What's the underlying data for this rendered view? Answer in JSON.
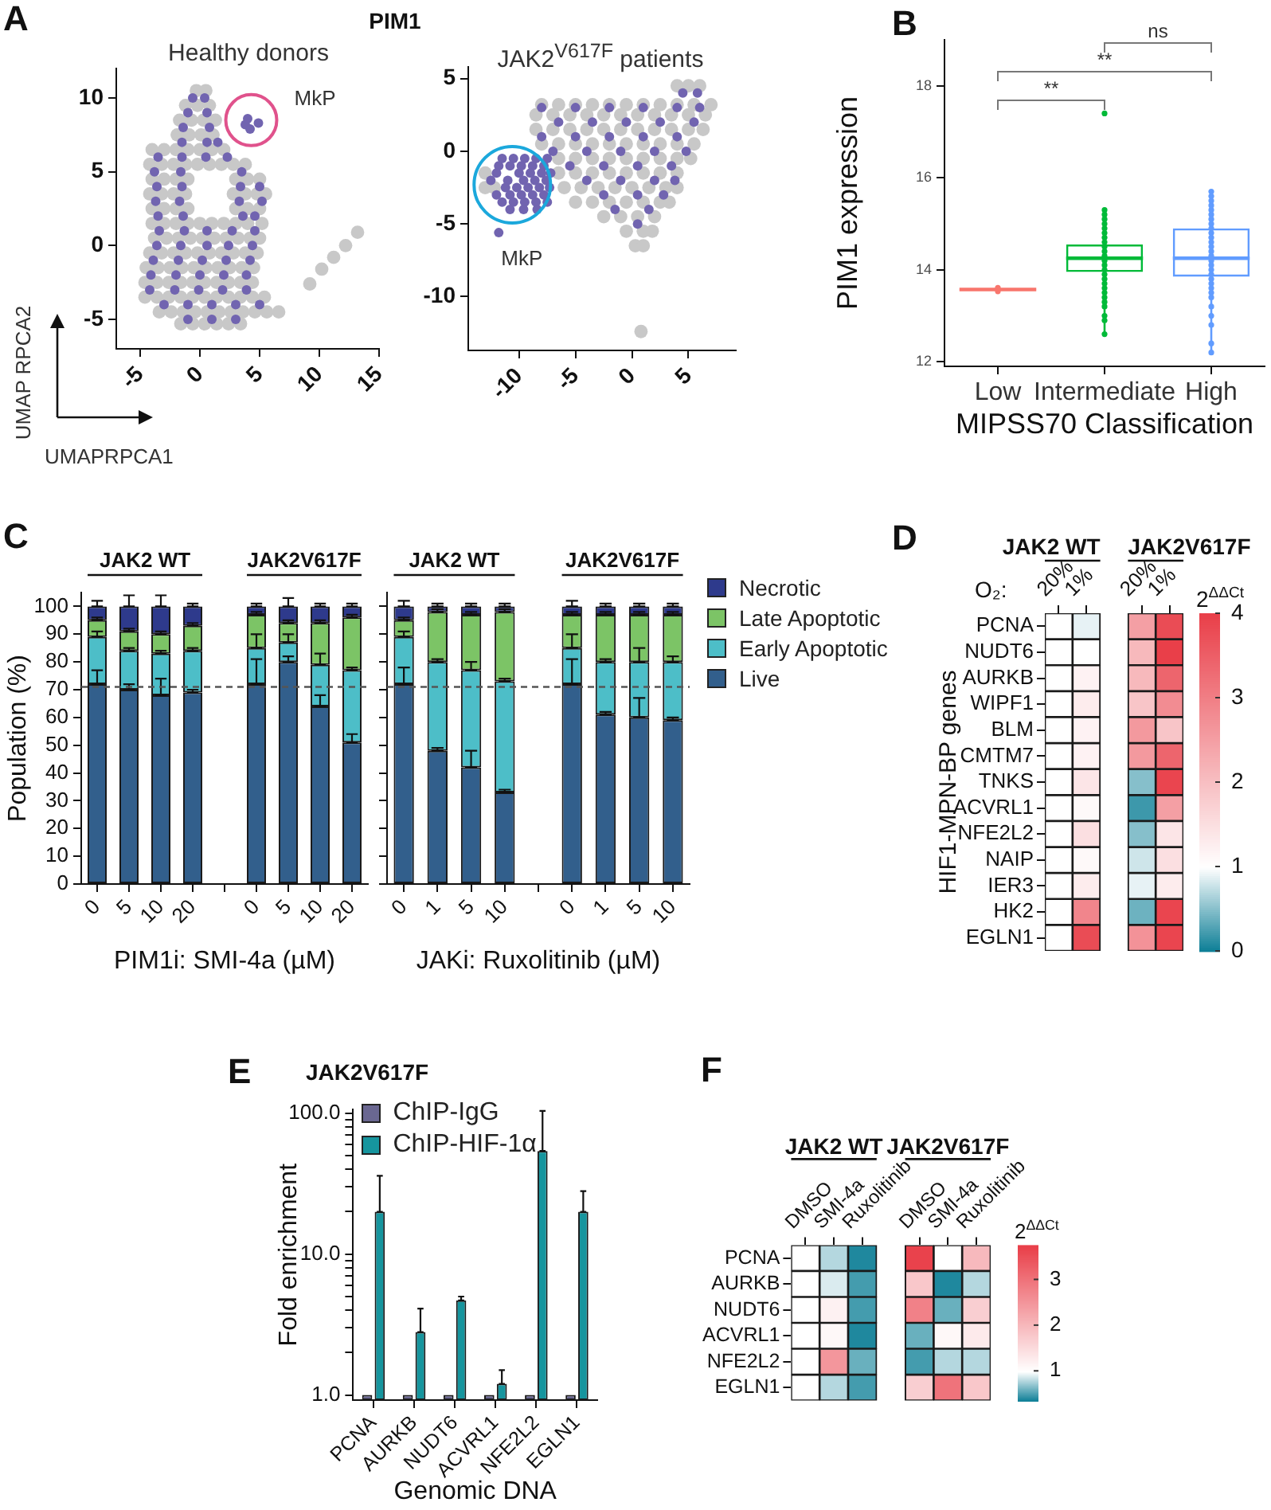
{
  "chart_data": [
    {
      "type": "scatter",
      "title": "PIM1",
      "subtitle": "Healthy donors",
      "xlabel": "UMAPRPCA1",
      "ylabel": "UMAP RPCA2",
      "xlim": [
        -7,
        15
      ],
      "xticks": [
        -5,
        0,
        5,
        10,
        15
      ],
      "ylim": [
        -7,
        12
      ],
      "yticks": [
        -5,
        0,
        5,
        10
      ],
      "marker": "circle",
      "annotations": [
        "A",
        {
          "text": "MkP",
          "x": 4.3,
          "y": 8.5
        }
      ],
      "series": [
        {
          "color": "#c8c8c8",
          "x": [
            -0.3,
            0.5,
            -1.2,
            -0.2,
            0.8,
            -1.7,
            -0.7,
            0.3,
            1.3,
            -1.9,
            -0.9,
            0.1,
            1.1,
            -4,
            -3,
            -2,
            -1,
            0,
            1,
            2,
            -4.2,
            -3.2,
            -2.2,
            -1.2,
            -0.2,
            0.8,
            1.8,
            2.8,
            3.8,
            -4,
            -3,
            -2,
            -1,
            3,
            4,
            5,
            -4.2,
            -3.2,
            -2.2,
            -1.2,
            2.8,
            3.8,
            4.8,
            5.5,
            -4,
            -3,
            -2,
            -1,
            3,
            4,
            5,
            -4,
            -3,
            -2,
            -1,
            0,
            1,
            2,
            3,
            4,
            5.2,
            -3.8,
            -2.8,
            -1.8,
            -0.8,
            0.2,
            1.2,
            2.2,
            3.2,
            4.2,
            5,
            -4.2,
            -3.2,
            -2.2,
            -1.2,
            -0.2,
            0.8,
            1.8,
            2.8,
            3.8,
            4.8,
            -4.5,
            -3.5,
            -2.5,
            -1.5,
            -0.5,
            0.5,
            1.5,
            2.5,
            3.5,
            4.5,
            -4.6,
            -3.6,
            -2.6,
            -1.6,
            -0.6,
            0.4,
            1.4,
            2.4,
            3.4,
            4.4,
            -4.6,
            -3.6,
            -2.6,
            -1.6,
            -0.6,
            0.4,
            1.4,
            2.4,
            3.4,
            4.4,
            5.4,
            -3.4,
            -2.4,
            -1.4,
            -0.4,
            0.6,
            1.6,
            2.6,
            3.6,
            4.6,
            5.6,
            6.6,
            -1.6,
            -0.6,
            0.4,
            1.4,
            2.4,
            3.4,
            9.2,
            10.2,
            11.2,
            12.2,
            13.2
          ],
          "values": [
            10.5,
            10.5,
            9.5,
            9.5,
            9.5,
            8.5,
            8.5,
            8.5,
            8.5,
            7.5,
            7.5,
            7.5,
            7.5,
            6.5,
            6.5,
            6.5,
            6.5,
            6.5,
            6.5,
            6.5,
            5.5,
            5.5,
            5.5,
            5.5,
            5.5,
            5.5,
            5.5,
            5.5,
            5.5,
            4.5,
            4.5,
            4.5,
            4.5,
            4.5,
            4.5,
            4.5,
            3.5,
            3.5,
            3.5,
            3.5,
            3.5,
            3.5,
            3.5,
            3.5,
            2.5,
            2.5,
            2.5,
            2.5,
            2.5,
            2.5,
            2.5,
            1.5,
            1.5,
            1.5,
            1.5,
            1.5,
            1.5,
            1.5,
            1.5,
            1.5,
            1.5,
            0.5,
            0.5,
            0.5,
            0.5,
            0.5,
            0.5,
            0.5,
            0.5,
            0.5,
            0.5,
            -0.5,
            -0.5,
            -0.5,
            -0.5,
            -0.5,
            -0.5,
            -0.5,
            -0.5,
            -0.5,
            -0.5,
            -1.5,
            -1.5,
            -1.5,
            -1.5,
            -1.5,
            -1.5,
            -1.5,
            -1.5,
            -1.5,
            -1.5,
            -2.5,
            -2.5,
            -2.5,
            -2.5,
            -2.5,
            -2.5,
            -2.5,
            -2.5,
            -2.5,
            -2.5,
            -3.5,
            -3.5,
            -3.5,
            -3.5,
            -3.5,
            -3.5,
            -3.5,
            -3.5,
            -3.5,
            -3.5,
            -3.5,
            -4.5,
            -4.5,
            -4.5,
            -4.5,
            -4.5,
            -4.5,
            -4.5,
            -4.5,
            -4.5,
            -4.5,
            -4.5,
            -5.3,
            -5.3,
            -5.3,
            -5.3,
            -5.3,
            -5.3,
            -2.6,
            -1.6,
            -0.8,
            0,
            0.9
          ]
        },
        {
          "color": "#7164b0",
          "x": [
            -0.6,
            0.4,
            -1,
            0.6,
            -1.4,
            0.8,
            -1.5,
            0.6,
            1.5,
            -3.5,
            -1.5,
            0.5,
            2.3,
            -3.8,
            -1.6,
            3.5,
            -3.6,
            -1.5,
            3.4,
            5,
            -3.7,
            -1.7,
            3.3,
            5.2,
            -3.5,
            -1.4,
            3.6,
            4.6,
            -3.4,
            -1.3,
            0.6,
            2.7,
            4.6,
            -3.6,
            -1.6,
            0.6,
            2.4,
            4.4,
            -3.9,
            -1.8,
            0.2,
            2.2,
            4.2,
            -4.1,
            -2,
            0,
            2,
            3.9,
            -4.2,
            -2.1,
            -0.1,
            1.9,
            3.9,
            -3,
            -1,
            1,
            3,
            5,
            -1,
            1,
            3,
            3.8,
            4.2,
            4.9,
            4
          ],
          "values": [
            10,
            10,
            9,
            9,
            8,
            8,
            7,
            7,
            7,
            6,
            6,
            6,
            6,
            5,
            5,
            5,
            4,
            4,
            4,
            4,
            3,
            3,
            3,
            3,
            2,
            2,
            2,
            2,
            1,
            1,
            1,
            1,
            1,
            0,
            0,
            0,
            0,
            0,
            -1,
            -1,
            -1,
            -1,
            -1,
            -2,
            -2,
            -2,
            -2,
            -2,
            -3,
            -3,
            -3,
            -3,
            -3,
            -4,
            -4,
            -4,
            -4,
            -4,
            -5,
            -5,
            -5,
            8.2,
            7.9,
            8.3,
            8.6
          ]
        }
      ]
    },
    {
      "type": "scatter",
      "subtitle": "JAK2$^{V617F}$ patients",
      "xlim": [
        -14.5,
        9.2
      ],
      "xticks": [
        -10,
        -5,
        0,
        5
      ],
      "ylim": [
        -13.7,
        5.8
      ],
      "yticks": [
        -10,
        -5,
        0,
        5
      ],
      "marker": "circle",
      "annotations": [
        {
          "text": "MkP",
          "x": -10.6,
          "y": -2.3
        }
      ],
      "series": [
        {
          "color": "#c8c8c8",
          "x": [
            4,
            5,
            6,
            -8,
            -6.5,
            -5,
            -3.5,
            -2,
            -0.5,
            1,
            2.5,
            4,
            5.5,
            7,
            -8.5,
            -7,
            -5.5,
            -4,
            -2.5,
            -1,
            0.5,
            2,
            3.5,
            5,
            6.5,
            -8.5,
            -7,
            -5.5,
            -4,
            -2.5,
            -1,
            0.5,
            2,
            3.5,
            5,
            6.3,
            -8,
            -6.5,
            -5,
            -3.5,
            -2,
            -0.5,
            1,
            2.5,
            4,
            5.5,
            -6.5,
            -5,
            -3.5,
            -2,
            -0.5,
            1,
            2.5,
            4,
            5.2,
            -13,
            -6.5,
            -5,
            -3.5,
            -2,
            -0.5,
            1,
            2.5,
            4,
            -13,
            -12.2,
            -6,
            -4.5,
            -3,
            -1.5,
            0,
            1.5,
            3,
            4,
            -5,
            -3.5,
            -2,
            -0.5,
            1,
            2.5,
            3.3,
            -2.5,
            -1,
            0.5,
            2,
            -0.5,
            1,
            1.8,
            0.3,
            1,
            0.8
          ],
          "values": [
            4.5,
            4.5,
            4.5,
            3.2,
            3.2,
            3.2,
            3.2,
            3.2,
            3.2,
            3.2,
            3.2,
            3.2,
            3.2,
            3.2,
            2.5,
            2.5,
            2.5,
            2.5,
            2.5,
            2.5,
            2.5,
            2.5,
            2.5,
            2.5,
            2.5,
            1.5,
            1.5,
            1.5,
            1.5,
            1.5,
            1.5,
            1.5,
            1.5,
            1.5,
            1.5,
            1.5,
            0.5,
            0.5,
            0.5,
            0.5,
            0.5,
            0.5,
            0.5,
            0.5,
            0.5,
            0.5,
            -0.5,
            -0.5,
            -0.5,
            -0.5,
            -0.5,
            -0.5,
            -0.5,
            -0.5,
            -0.5,
            -1.5,
            -1.5,
            -1.5,
            -1.5,
            -1.5,
            -1.5,
            -1.5,
            -1.5,
            -1.5,
            -2.5,
            -2.5,
            -2.5,
            -2.5,
            -2.5,
            -2.5,
            -2.5,
            -2.5,
            -2.5,
            -2.5,
            -3.5,
            -3.5,
            -3.5,
            -3.5,
            -3.5,
            -3.5,
            -3.5,
            -4.5,
            -4.5,
            -4.5,
            -4.5,
            -5.5,
            -5.5,
            -5.5,
            -6.5,
            -6.5,
            -12.4
          ]
        },
        {
          "color": "#7164b0",
          "x": [
            -8,
            -5,
            -2,
            1,
            4,
            6,
            -6.5,
            -3.5,
            -0.5,
            2.5,
            5.5,
            -8,
            -5,
            -2,
            1,
            4,
            -7,
            -4,
            -1,
            2,
            4.8,
            -5.5,
            -2.5,
            0.5,
            3.5,
            -4,
            -1,
            2,
            3.8,
            -2.5,
            0.5,
            2.8,
            -1.5,
            1.5,
            0.5,
            4.5,
            5.8,
            -11.5,
            -10.5,
            -9.5,
            -8.5,
            -7.5,
            -11.8,
            -10.8,
            -9.8,
            -8.8,
            -7.8,
            -12,
            -10,
            -9,
            -8,
            -7.2,
            -12.5,
            -11,
            -9.6,
            -8.6,
            -7.6,
            -11.2,
            -10.2,
            -9.2,
            -8.2,
            -7.3,
            -12,
            -10.8,
            -9.8,
            -8.8,
            -7.8,
            -11.5,
            -10.5,
            -9.5,
            -8.5,
            -7.5,
            -10.8,
            -9.6,
            -8.4,
            -11.8
          ],
          "values": [
            3,
            3,
            3,
            3,
            3,
            3,
            2,
            2,
            2,
            2,
            2,
            1,
            1,
            1,
            1,
            1,
            0,
            0,
            0,
            0,
            0,
            -1,
            -1,
            -1,
            -1,
            -2,
            -2,
            -2,
            -2,
            -3,
            -3,
            -3,
            -4,
            -4,
            -5,
            4,
            4,
            -0.5,
            -0.5,
            -0.5,
            -0.5,
            -0.5,
            -1,
            -1,
            -1,
            -1,
            -1,
            -1.5,
            -1.5,
            -1.5,
            -1.5,
            -1.5,
            -2,
            -2,
            -2,
            -2,
            -2,
            -2.5,
            -2.5,
            -2.5,
            -2.5,
            -2.5,
            -3,
            -3,
            -3,
            -3,
            -3,
            -3.5,
            -3.5,
            -3.5,
            -3.5,
            -3.5,
            -4,
            -4,
            -4,
            -5.6
          ]
        }
      ]
    },
    {
      "type": "box",
      "categories": [
        "Low",
        "Intermediate",
        "High"
      ],
      "xlabel": "MIPSS70 Classification",
      "ylabel": "PIM1 expression",
      "ylim": [
        11.9,
        19
      ],
      "yticks": [
        12,
        14,
        16,
        18
      ],
      "marker": "circle",
      "annotations": [
        "B",
        "**",
        "**",
        "ns"
      ],
      "series": [
        {
          "type": "box",
          "colors": [
            "#f8766d",
            "#00ba38",
            "#619cff"
          ],
          "boxes": [
            {
              "low": 13.53,
              "q1": 13.55,
              "median": 13.57,
              "q3": 13.59,
              "high": 13.61
            },
            {
              "low": 12.6,
              "q1": 13.95,
              "median": 14.25,
              "q3": 14.55,
              "high": 15.3,
              "outliers": [
                17.4
              ]
            },
            {
              "low": 12.2,
              "q1": 13.85,
              "median": 14.25,
              "q3": 14.9,
              "high": 15.7
            }
          ]
        },
        {
          "type": "scatter",
          "color": "#f8766d",
          "x": [
            "Low",
            "Low"
          ],
          "values": [
            13.53,
            13.61
          ]
        },
        {
          "type": "scatter",
          "color": "#00ba38",
          "x": [
            "Intermediate",
            "Intermediate",
            "Intermediate",
            "Intermediate",
            "Intermediate",
            "Intermediate",
            "Intermediate",
            "Intermediate",
            "Intermediate",
            "Intermediate",
            "Intermediate",
            "Intermediate",
            "Intermediate",
            "Intermediate",
            "Intermediate",
            "Intermediate",
            "Intermediate",
            "Intermediate",
            "Intermediate",
            "Intermediate",
            "Intermediate",
            "Intermediate",
            "Intermediate",
            "Intermediate",
            "Intermediate"
          ],
          "values": [
            12.6,
            12.9,
            13.0,
            13.2,
            13.3,
            13.4,
            13.5,
            13.6,
            13.7,
            13.8,
            13.9,
            14.0,
            14.1,
            14.2,
            14.3,
            14.4,
            14.5,
            14.6,
            14.7,
            14.8,
            14.9,
            15.0,
            15.1,
            15.2,
            15.3
          ]
        },
        {
          "type": "scatter",
          "color": "#619cff",
          "x": [
            "High",
            "High",
            "High",
            "High",
            "High",
            "High",
            "High",
            "High",
            "High",
            "High",
            "High",
            "High",
            "High",
            "High",
            "High",
            "High",
            "High",
            "High",
            "High",
            "High",
            "High",
            "High",
            "High",
            "High",
            "High",
            "High",
            "High",
            "High",
            "High"
          ],
          "values": [
            12.2,
            12.4,
            12.8,
            13.0,
            13.2,
            13.4,
            13.5,
            13.6,
            13.7,
            13.8,
            13.9,
            14.0,
            14.1,
            14.2,
            14.3,
            14.4,
            14.5,
            14.6,
            14.7,
            14.8,
            14.9,
            15.0,
            15.1,
            15.2,
            15.3,
            15.4,
            15.5,
            15.6,
            15.7
          ]
        }
      ]
    },
    {
      "type": "bar",
      "stacked": true,
      "categories": [
        "0",
        "5",
        "10",
        "20",
        null,
        "0",
        "5",
        "10",
        "20"
      ],
      "xlabel": "PIM1i: SMI-4a (µM)",
      "ylabel": "Population (%)",
      "ylim": [
        0,
        105
      ],
      "yticks": [
        0,
        10,
        20,
        30,
        40,
        50,
        60,
        70,
        80,
        90,
        100
      ],
      "annotations": [
        "C",
        "JAK2 WT",
        "JAK2V617F"
      ],
      "ref_lines": [
        {
          "axis": "y",
          "value": 71,
          "color": "#555555",
          "line_style": "dashed"
        }
      ],
      "series": [
        {
          "color": "#325f8c",
          "values": [
            72,
            70,
            68,
            69,
            null,
            72,
            80,
            64,
            51
          ],
          "errors": [
            [
              72,
              77
            ],
            [
              70,
              72
            ],
            [
              68,
              74
            ],
            [
              69,
              70
            ],
            null,
            [
              72,
              81
            ],
            [
              80,
              82
            ],
            [
              64,
              68
            ],
            [
              51,
              54
            ]
          ]
        },
        {
          "color": "#4dbec8",
          "values": [
            17,
            14,
            15,
            15,
            null,
            13,
            7,
            15,
            26
          ],
          "errors": [
            [
              89,
              91
            ],
            [
              84,
              85
            ],
            [
              83,
              84
            ],
            [
              84,
              85
            ],
            null,
            [
              85,
              90
            ],
            [
              87,
              90
            ],
            [
              79,
              83
            ],
            [
              77,
              78
            ]
          ]
        },
        {
          "color": "#7cc466",
          "values": [
            6,
            7,
            7,
            9,
            null,
            12,
            7,
            15,
            19
          ],
          "errors": [
            [
              95,
              96
            ],
            [
              91,
              92
            ],
            [
              90,
              91
            ],
            [
              93,
              94
            ],
            null,
            [
              97,
              98
            ],
            [
              94,
              95
            ],
            [
              94,
              95
            ],
            [
              96,
              97
            ]
          ]
        },
        {
          "color": "#2e3a8c",
          "values": [
            5,
            9,
            10,
            7,
            null,
            3,
            6,
            6,
            4
          ],
          "errors": [
            [
              100,
              102
            ],
            [
              100,
              104
            ],
            [
              100,
              104
            ],
            [
              100,
              101
            ],
            null,
            [
              100,
              101
            ],
            [
              100,
              103
            ],
            [
              100,
              101
            ],
            [
              100,
              101
            ]
          ]
        }
      ]
    },
    {
      "type": "bar",
      "stacked": true,
      "categories": [
        "0",
        "1",
        "5",
        "10",
        null,
        "0",
        "1",
        "5",
        "10"
      ],
      "xlabel": "JAKi: Ruxolitinib (µM)",
      "ylim": [
        0,
        105
      ],
      "yticks": [
        0,
        10,
        20,
        30,
        40,
        50,
        60,
        70,
        80,
        90,
        100
      ],
      "tick_labels": "x",
      "legend": "right",
      "annotations": [
        "JAK2 WT",
        "JAK2V617F"
      ],
      "ref_lines": [
        {
          "axis": "y",
          "value": 71,
          "color": "#555555",
          "line_style": "dashed"
        }
      ],
      "series": [
        {
          "name": "Live",
          "color": "#325f8c",
          "values": [
            72,
            48,
            42,
            33,
            null,
            72,
            61,
            60,
            59
          ],
          "errors": [
            [
              72,
              78
            ],
            [
              48,
              49
            ],
            [
              42,
              48
            ],
            [
              33,
              34
            ],
            null,
            [
              72,
              81
            ],
            [
              61,
              62
            ],
            [
              60,
              67
            ],
            [
              59,
              60
            ]
          ]
        },
        {
          "name": "Early Apoptotic",
          "color": "#4dbec8",
          "values": [
            17,
            32,
            35,
            40,
            null,
            13,
            19,
            20,
            21
          ],
          "errors": [
            [
              89,
              91
            ],
            [
              80,
              81
            ],
            [
              77,
              80
            ],
            [
              73,
              74
            ],
            null,
            [
              85,
              90
            ],
            [
              80,
              81
            ],
            [
              80,
              85
            ],
            [
              80,
              82
            ]
          ]
        },
        {
          "name": "Late Apoptotic",
          "color": "#7cc466",
          "values": [
            6,
            18,
            20,
            25,
            null,
            12,
            17,
            17,
            17
          ],
          "errors": [
            [
              95,
              96
            ],
            [
              98,
              99
            ],
            [
              97,
              98
            ],
            [
              98,
              99
            ],
            null,
            [
              97,
              98
            ],
            [
              97,
              98
            ],
            [
              97,
              98
            ],
            [
              97,
              98
            ]
          ]
        },
        {
          "name": "Necrotic",
          "color": "#2e3a8c",
          "values": [
            5,
            2,
            3,
            2,
            null,
            3,
            3,
            3,
            3
          ],
          "errors": [
            [
              100,
              102
            ],
            [
              100,
              101
            ],
            [
              100,
              101
            ],
            [
              100,
              101
            ],
            null,
            [
              100,
              102
            ],
            [
              100,
              101
            ],
            [
              100,
              101
            ],
            [
              100,
              101
            ]
          ]
        }
      ]
    },
    {
      "type": "heatmap",
      "xlabel": "O₂:",
      "ylabel": "HIF1-MPN-BP genes",
      "categories": [
        "20%",
        "1%",
        null,
        "20%",
        "1%"
      ],
      "y_categories": [
        "PCNA",
        "NUDT6",
        "AURKB",
        "WIPF1",
        "BLM",
        "CMTM7",
        "TNKS",
        "ACVRL1",
        "NFE2L2",
        "NAIP",
        "IER3",
        "HK2",
        "EGLN1"
      ],
      "cells": [
        [
          1,
          0.9,
          null,
          2.5,
          3.8
        ],
        [
          1,
          1,
          null,
          2.1,
          4
        ],
        [
          1,
          1.2,
          null,
          2.1,
          3.4
        ],
        [
          1,
          1.3,
          null,
          1.9,
          2.8
        ],
        [
          1,
          1.2,
          null,
          2.6,
          1.9
        ],
        [
          1,
          1.2,
          null,
          2.6,
          3.4
        ],
        [
          1,
          1.4,
          null,
          0.5,
          3.9
        ],
        [
          1,
          1.1,
          null,
          0.2,
          2.5
        ],
        [
          1,
          1.5,
          null,
          0.5,
          1.4
        ],
        [
          1,
          1.1,
          null,
          0.8,
          1.5
        ],
        [
          1,
          1.3,
          null,
          0.9,
          1.3
        ],
        [
          1,
          2.9,
          null,
          0.4,
          3.9
        ],
        [
          1,
          3.8,
          null,
          2.7,
          3.9
        ]
      ],
      "clim": [
        0,
        4
      ],
      "cticks": [
        0,
        1,
        2,
        3,
        4
      ],
      "clabel": "2$^{ΔΔCt}$",
      "annotations": [
        "D",
        "JAK2 WT",
        "JAK2V617F"
      ]
    },
    {
      "type": "bar",
      "title": "JAK2V617F",
      "xlabel": "Genomic DNA",
      "ylabel": "Fold enrichment",
      "categories": [
        "PCNA",
        "AURKB",
        "NUDT6",
        "ACVRL1",
        "NFE2L2",
        "EGLN1"
      ],
      "log": true,
      "ylim": [
        0.92,
        106
      ],
      "yticks": [
        {
          "value": 1,
          "label": "1.0"
        },
        {
          "value": 2,
          "label": null
        },
        {
          "value": 3,
          "label": null
        },
        {
          "value": 4,
          "label": null
        },
        {
          "value": 5,
          "label": null
        },
        {
          "value": 6,
          "label": null
        },
        {
          "value": 7,
          "label": null
        },
        {
          "value": 8,
          "label": null
        },
        {
          "value": 9,
          "label": null
        },
        {
          "value": 10,
          "label": "10.0"
        },
        {
          "value": 20,
          "label": null
        },
        {
          "value": 30,
          "label": null
        },
        {
          "value": 40,
          "label": null
        },
        {
          "value": 50,
          "label": null
        },
        {
          "value": 60,
          "label": null
        },
        {
          "value": 70,
          "label": null
        },
        {
          "value": 80,
          "label": null
        },
        {
          "value": 90,
          "label": null
        },
        {
          "value": 100,
          "label": "100.0"
        }
      ],
      "legend": "top left",
      "annotations": [
        "E"
      ],
      "series": [
        {
          "name": "ChIP-IgG",
          "color": "#6a6791",
          "values": [
            1,
            1,
            1,
            1,
            1,
            1
          ]
        },
        {
          "name": "ChIP-HIF-1α",
          "color": "#16959e",
          "values": [
            20,
            2.8,
            4.7,
            1.2,
            54,
            20
          ],
          "errors": [
            [
              20,
              36
            ],
            [
              2.8,
              4.1
            ],
            [
              4.7,
              5.0
            ],
            [
              1.2,
              1.5
            ],
            [
              54,
              104
            ],
            [
              20,
              28
            ]
          ]
        }
      ]
    },
    {
      "type": "heatmap",
      "categories": [
        "DMSO",
        "SMI-4a",
        "Ruxolitinib",
        null,
        "DMSO",
        "SMI-4a",
        "Ruxolitinib"
      ],
      "y_categories": [
        "PCNA",
        "AURKB",
        "NUDT6",
        "ACVRL1",
        "NFE2L2",
        "EGLN1"
      ],
      "cells": [
        [
          1,
          0.8,
          0.4,
          null,
          3.7,
          1,
          2
        ],
        [
          1,
          0.9,
          0.5,
          null,
          1.8,
          0.4,
          0.8
        ],
        [
          1,
          1.2,
          0.5,
          null,
          2.8,
          0.6,
          1.7
        ],
        [
          1,
          1.1,
          0.4,
          null,
          0.6,
          1.1,
          1.3
        ],
        [
          1,
          2.5,
          0.6,
          null,
          0.5,
          0.8,
          0.8
        ],
        [
          1,
          0.8,
          0.5,
          null,
          1.7,
          3,
          1.8
        ]
      ],
      "clim": [
        0.35,
        3.75
      ],
      "cticks": [
        1,
        2,
        3
      ],
      "clabel": "2$^{ΔΔCt}$",
      "annotations": [
        "F",
        "JAK2 WT",
        "JAK2V617F"
      ]
    }
  ]
}
